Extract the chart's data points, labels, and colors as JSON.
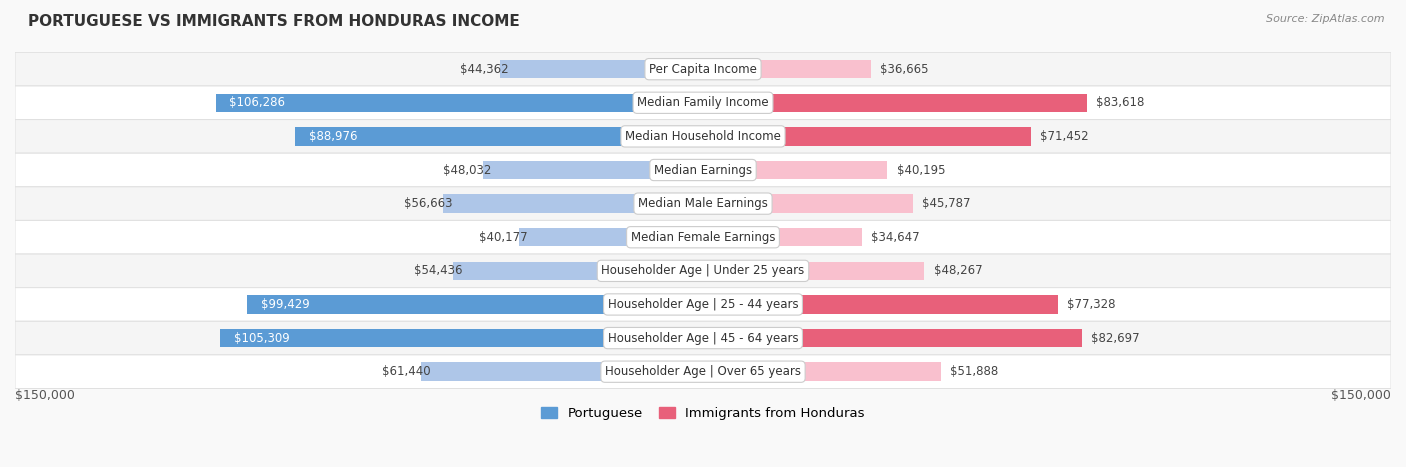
{
  "title": "PORTUGUESE VS IMMIGRANTS FROM HONDURAS INCOME",
  "source": "Source: ZipAtlas.com",
  "categories": [
    "Per Capita Income",
    "Median Family Income",
    "Median Household Income",
    "Median Earnings",
    "Median Male Earnings",
    "Median Female Earnings",
    "Householder Age | Under 25 years",
    "Householder Age | 25 - 44 years",
    "Householder Age | 45 - 64 years",
    "Householder Age | Over 65 years"
  ],
  "portuguese_values": [
    44362,
    106286,
    88976,
    48032,
    56663,
    40177,
    54436,
    99429,
    105309,
    61440
  ],
  "honduras_values": [
    36665,
    83618,
    71452,
    40195,
    45787,
    34647,
    48267,
    77328,
    82697,
    51888
  ],
  "portuguese_labels": [
    "$44,362",
    "$106,286",
    "$88,976",
    "$48,032",
    "$56,663",
    "$40,177",
    "$54,436",
    "$99,429",
    "$105,309",
    "$61,440"
  ],
  "honduras_labels": [
    "$36,665",
    "$83,618",
    "$71,452",
    "$40,195",
    "$45,787",
    "$34,647",
    "$48,267",
    "$77,328",
    "$82,697",
    "$51,888"
  ],
  "max_value": 150000,
  "portuguese_color_light": "#aec6e8",
  "portuguese_color_dark": "#5b9bd5",
  "honduras_color_light": "#f9c0ce",
  "honduras_color_dark": "#e8607a",
  "bg_color": "#f9f9f9",
  "row_bg_even": "#f5f5f5",
  "row_bg_odd": "#ffffff",
  "row_border": "#e0e0e0",
  "legend_portuguese": "Portuguese",
  "legend_honduras": "Immigrants from Honduras",
  "bar_height": 0.55,
  "label_inside_threshold": 70000,
  "x_axis_label_left": "$150,000",
  "x_axis_label_right": "$150,000",
  "label_fontsize": 8.5,
  "title_fontsize": 11,
  "source_fontsize": 8
}
